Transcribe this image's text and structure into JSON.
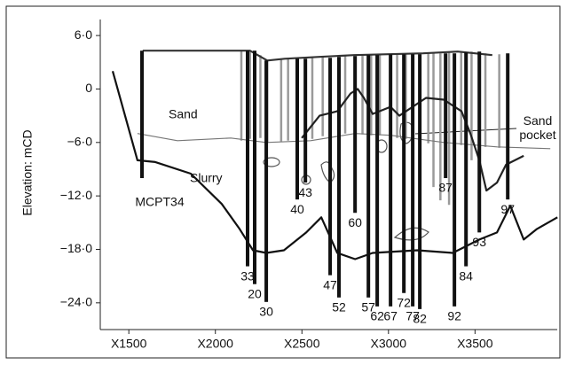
{
  "chart_data": {
    "type": "section",
    "y_label": "Elevation: mCD",
    "xlim": [
      1335,
      3975
    ],
    "ylim": [
      -27,
      7.8
    ],
    "xticks": [
      {
        "value": 1500,
        "label": "X1500"
      },
      {
        "value": 2000,
        "label": "X2000"
      },
      {
        "value": 2500,
        "label": "X2500"
      },
      {
        "value": 3000,
        "label": "X3000"
      },
      {
        "value": 3500,
        "label": "X3500"
      }
    ],
    "yticks": [
      {
        "value": 6,
        "label": "6·0"
      },
      0,
      {
        "value": -6,
        "label": "−6·0"
      },
      {
        "value": -12,
        "label": "−12·0"
      },
      {
        "value": -18,
        "label": "−18·0"
      },
      {
        "value": -24,
        "label": "−24·0"
      }
    ],
    "annotations": [
      "Sand",
      "Slurry",
      "Sand pocket"
    ],
    "surfaces": [
      {
        "color": "#333333",
        "x": [
          1580,
          2000,
          2200,
          2300,
          2400,
          2600,
          2800,
          3000,
          3200,
          3400,
          3600
        ],
        "y": [
          4.3,
          4.3,
          4.3,
          3.2,
          3.4,
          3.6,
          3.8,
          3.9,
          4.0,
          4.2,
          3.8
        ]
      },
      {
        "color": "#777777",
        "x": [
          1550,
          1781,
          2089,
          2294,
          2550,
          2807,
          3012,
          3320,
          3627,
          3935
        ],
        "y": [
          -5.0,
          -5.8,
          -5.5,
          -6.0,
          -5.8,
          -5.0,
          -5.2,
          -6.0,
          -6.5,
          -6.7
        ]
      },
      {
        "color": "#111111",
        "x": [
          1407,
          1550,
          1653,
          1858,
          2037,
          2140,
          2217,
          2294,
          2396,
          2525,
          2612,
          2704,
          2807,
          2909,
          3166,
          3371,
          3525,
          3627,
          3704,
          3781,
          3858,
          3976
        ],
        "y": [
          2.0,
          -8.0,
          -8.2,
          -9.5,
          -12.9,
          -15.7,
          -18.1,
          -18.4,
          -18.1,
          -16.1,
          -14.4,
          -18.4,
          -19.1,
          -18.4,
          -18.1,
          -18.4,
          -16.9,
          -16.1,
          -13.1,
          -16.9,
          -15.7,
          -14.4
        ]
      },
      {
        "color": "#222222",
        "x": [
          2499,
          2602,
          2704,
          2781,
          2822,
          2858,
          2909,
          3012,
          3063,
          3217,
          3320,
          3422,
          3473,
          3525,
          3566,
          3627,
          3679,
          3781
        ],
        "y": [
          -5.5,
          -3.0,
          -2.5,
          -0.5,
          0.0,
          -1.0,
          -2.8,
          -2.0,
          -3.0,
          -1.0,
          -1.2,
          -2.5,
          -5.0,
          -8.0,
          -11.4,
          -10.5,
          -8.5,
          -7.5
        ]
      }
    ],
    "cpt_traces": {
      "x": [
        2150,
        2200,
        2260,
        2300,
        2380,
        2420,
        2560,
        2620,
        2750,
        2850,
        2900,
        2950,
        3050,
        3100,
        3230,
        3260,
        3300,
        3350,
        3420,
        3480,
        3560,
        3640
      ],
      "top": [
        4.3,
        4.3,
        3.8,
        3.2,
        3.4,
        3.4,
        3.5,
        3.6,
        3.7,
        3.8,
        3.8,
        3.9,
        3.9,
        3.9,
        4.0,
        4.0,
        4.0,
        4.1,
        4.2,
        4.2,
        4.0,
        3.9
      ],
      "bottom": [
        -5.8,
        -5.6,
        -5.5,
        -6.0,
        -5.9,
        -5.8,
        -5.6,
        -5.3,
        -5.0,
        -5.1,
        -5.2,
        -5.2,
        -5.5,
        -5.6,
        -6.1,
        -11.0,
        -12.5,
        -13.0,
        -6.3,
        -8.0,
        -6.5,
        -6.6
      ]
    },
    "boreholes": {
      "labels": [
        "MCPT34",
        "33",
        "20",
        "30",
        "40",
        "43",
        "47",
        "52",
        "60",
        "57",
        "62",
        "67",
        "72",
        "77",
        "82",
        "87",
        "92",
        "84",
        "93",
        "97"
      ],
      "x": [
        1576,
        2186,
        2227,
        2294,
        2473,
        2520,
        2663,
        2714,
        2807,
        2884,
        2935,
        3012,
        3089,
        3140,
        3181,
        3330,
        3381,
        3448,
        3525,
        3689
      ],
      "top": [
        4.3,
        4.3,
        4.3,
        3.2,
        3.4,
        3.4,
        3.5,
        3.6,
        3.7,
        3.8,
        3.8,
        3.9,
        3.9,
        3.9,
        3.9,
        4.0,
        4.0,
        4.1,
        4.2,
        4.0
      ],
      "bottom": [
        -10.0,
        -19.9,
        -21.9,
        -23.9,
        -12.4,
        -10.5,
        -20.9,
        -23.4,
        -13.9,
        -23.4,
        -24.4,
        -24.4,
        -22.9,
        -24.4,
        -24.7,
        -10.0,
        -24.4,
        -19.9,
        -16.1,
        -12.4
      ]
    }
  }
}
